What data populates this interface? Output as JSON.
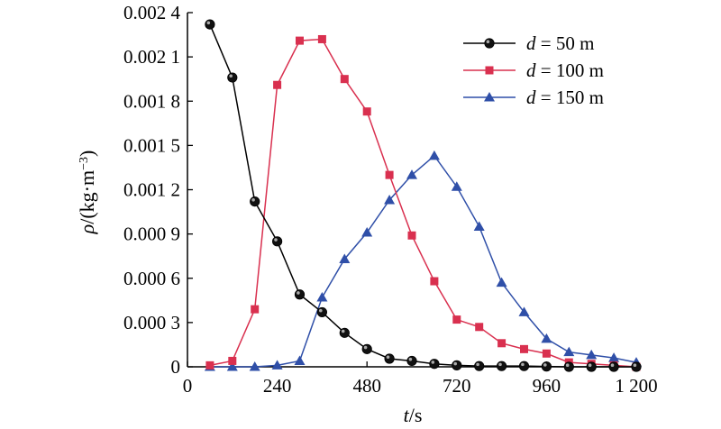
{
  "chart_data": {
    "type": "line",
    "xlabel": "t/s",
    "ylabel": "ρ/(kg·m⁻³)",
    "xlim": [
      0,
      1200
    ],
    "ylim": [
      0,
      0.0024
    ],
    "grid": false,
    "legend_position": "top-right",
    "x_ticks": [
      {
        "value": 0,
        "label": "0"
      },
      {
        "value": 240,
        "label": "240"
      },
      {
        "value": 480,
        "label": "480"
      },
      {
        "value": 720,
        "label": "720"
      },
      {
        "value": 960,
        "label": "960"
      },
      {
        "value": 1200,
        "label": "1 200"
      }
    ],
    "y_ticks": [
      {
        "value": 0,
        "label": "0"
      },
      {
        "value": 0.0003,
        "label": "0.000 3"
      },
      {
        "value": 0.0006,
        "label": "0.000 6"
      },
      {
        "value": 0.0009,
        "label": "0.000 9"
      },
      {
        "value": 0.0012,
        "label": "0.001 2"
      },
      {
        "value": 0.0015,
        "label": "0.001 5"
      },
      {
        "value": 0.0018,
        "label": "0.001 8"
      },
      {
        "value": 0.0021,
        "label": "0.002 1"
      },
      {
        "value": 0.0024,
        "label": "0.002 4"
      }
    ],
    "x": [
      60,
      120,
      180,
      240,
      300,
      360,
      420,
      480,
      540,
      600,
      660,
      720,
      780,
      840,
      900,
      960,
      1020,
      1080,
      1140,
      1200
    ],
    "series": [
      {
        "name_prefix": "d",
        "name_suffix": " = 50 m",
        "color": "#000000",
        "marker": "sphere",
        "values": [
          0.00232,
          0.00196,
          0.00112,
          0.00085,
          0.00049,
          0.00037,
          0.00023,
          0.00012,
          5.5e-05,
          4e-05,
          2e-05,
          1e-05,
          5e-06,
          5e-06,
          5e-06,
          2e-06,
          0.0,
          0.0,
          0.0,
          0.0
        ]
      },
      {
        "name_prefix": "d",
        "name_suffix": " = 100 m",
        "color": "#d9304f",
        "marker": "square",
        "values": [
          1e-05,
          4e-05,
          0.00039,
          0.00191,
          0.00221,
          0.00222,
          0.00195,
          0.00173,
          0.0013,
          0.00089,
          0.00058,
          0.00032,
          0.00027,
          0.00016,
          0.00012,
          9e-05,
          3e-05,
          2e-05,
          1e-05,
          0.0
        ]
      },
      {
        "name_prefix": "d",
        "name_suffix": " = 150 m",
        "color": "#2f4fa8",
        "marker": "triangle",
        "values": [
          0.0,
          0.0,
          0.0,
          1e-05,
          4e-05,
          0.00047,
          0.00073,
          0.00091,
          0.00113,
          0.0013,
          0.00143,
          0.00122,
          0.00095,
          0.00057,
          0.00037,
          0.00019,
          0.0001,
          8e-05,
          6e-05,
          3e-05
        ]
      }
    ]
  }
}
